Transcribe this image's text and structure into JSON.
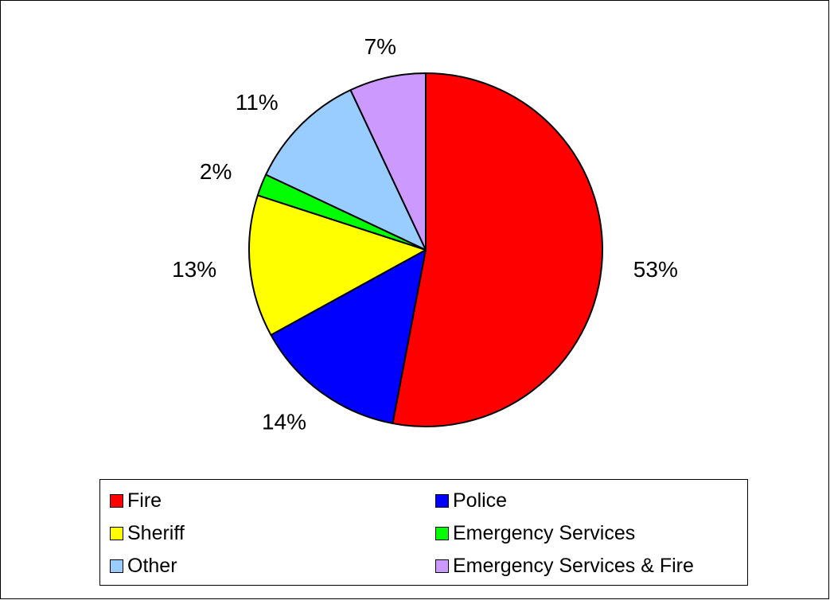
{
  "chart_data": {
    "type": "pie",
    "title": "",
    "slices": [
      {
        "name": "Fire",
        "value": 53,
        "label": "53%",
        "color": "#ff0000"
      },
      {
        "name": "Police",
        "value": 14,
        "label": "14%",
        "color": "#0000ff"
      },
      {
        "name": "Sheriff",
        "value": 13,
        "label": "13%",
        "color": "#ffff00"
      },
      {
        "name": "Emergency Services",
        "value": 2,
        "label": "2%",
        "color": "#00ff00"
      },
      {
        "name": "Other",
        "value": 11,
        "label": "11%",
        "color": "#99ccff"
      },
      {
        "name": "Emergency Services & Fire",
        "value": 7,
        "label": "7%",
        "color": "#cc99ff"
      }
    ],
    "start_angle_deg": 0,
    "direction": "clockwise",
    "legend_position": "bottom",
    "legend_columns": 2
  }
}
